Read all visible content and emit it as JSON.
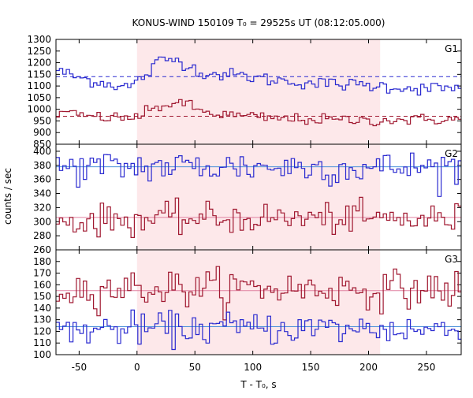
{
  "chart_data": {
    "type": "line",
    "title": "KONUS-WIND 150109 T₀ = 29525s UT (08:12:05.000)",
    "xlabel": "T - T₀, s",
    "ylabel": "counts / sec",
    "xlim": [
      -70,
      280
    ],
    "xticks": [
      -50,
      0,
      50,
      100,
      150,
      200,
      250
    ],
    "highlight_interval": [
      0,
      210
    ],
    "colors": {
      "series_blue": "#2a2ad0",
      "series_red": "#a01830",
      "fit_blue": "#4a90d9",
      "fit_red": "#e080a0",
      "highlight": "#fde8ea"
    },
    "bin_width": 2.944,
    "panels": [
      {
        "label": "G1",
        "ylim": [
          850,
          1300
        ],
        "yticks": [
          850,
          900,
          950,
          1000,
          1050,
          1100,
          1150,
          1200,
          1250,
          1300
        ],
        "background": {
          "blue": 1140,
          "red": 970
        },
        "series": [
          {
            "color": "blue",
            "knots": [
              [
                -70,
                1175
              ],
              [
                -65,
                1160
              ],
              [
                -50,
                1135
              ],
              [
                -30,
                1115
              ],
              [
                -20,
                1105
              ],
              [
                -5,
                1095
              ],
              [
                0,
                1120
              ],
              [
                10,
                1155
              ],
              [
                15,
                1185
              ],
              [
                20,
                1210
              ],
              [
                30,
                1215
              ],
              [
                40,
                1205
              ],
              [
                45,
                1185
              ],
              [
                55,
                1160
              ],
              [
                70,
                1150
              ],
              [
                90,
                1145
              ],
              [
                110,
                1130
              ],
              [
                130,
                1120
              ],
              [
                160,
                1110
              ],
              [
                190,
                1105
              ],
              [
                210,
                1100
              ],
              [
                240,
                1090
              ],
              [
                280,
                1090
              ]
            ],
            "noise": 14
          },
          {
            "color": "red",
            "knots": [
              [
                -70,
                985
              ],
              [
                -50,
                975
              ],
              [
                -30,
                965
              ],
              [
                -10,
                962
              ],
              [
                0,
                968
              ],
              [
                10,
                990
              ],
              [
                25,
                1020
              ],
              [
                35,
                1030
              ],
              [
                45,
                1015
              ],
              [
                60,
                985
              ],
              [
                80,
                975
              ],
              [
                120,
                960
              ],
              [
                160,
                955
              ],
              [
                200,
                952
              ],
              [
                240,
                955
              ],
              [
                280,
                958
              ]
            ],
            "noise": 12
          }
        ]
      },
      {
        "label": "G2",
        "ylim": [
          260,
          410
        ],
        "yticks": [
          260,
          280,
          300,
          320,
          340,
          360,
          380,
          400
        ],
        "background": {
          "blue": 378,
          "red": 306
        },
        "series": [
          {
            "color": "blue",
            "knots": [
              [
                -70,
                376
              ],
              [
                0,
                378
              ],
              [
                100,
                378
              ],
              [
                200,
                376
              ],
              [
                280,
                378
              ]
            ],
            "noise": 12
          },
          {
            "color": "red",
            "knots": [
              [
                -70,
                300
              ],
              [
                0,
                303
              ],
              [
                100,
                305
              ],
              [
                200,
                304
              ],
              [
                280,
                303
              ]
            ],
            "noise": 11
          }
        ]
      },
      {
        "label": "G3",
        "ylim": [
          100,
          190
        ],
        "yticks": [
          100,
          110,
          120,
          130,
          140,
          150,
          160,
          170,
          180
        ],
        "background": {
          "blue": 124,
          "red": 155
        },
        "series": [
          {
            "color": "red",
            "knots": [
              [
                -70,
                156
              ],
              [
                0,
                157
              ],
              [
                100,
                157
              ],
              [
                200,
                156
              ],
              [
                280,
                156
              ]
            ],
            "noise": 8
          },
          {
            "color": "blue",
            "knots": [
              [
                -70,
                121
              ],
              [
                0,
                122
              ],
              [
                100,
                123
              ],
              [
                200,
                122
              ],
              [
                280,
                121
              ]
            ],
            "noise": 7
          }
        ]
      }
    ]
  }
}
